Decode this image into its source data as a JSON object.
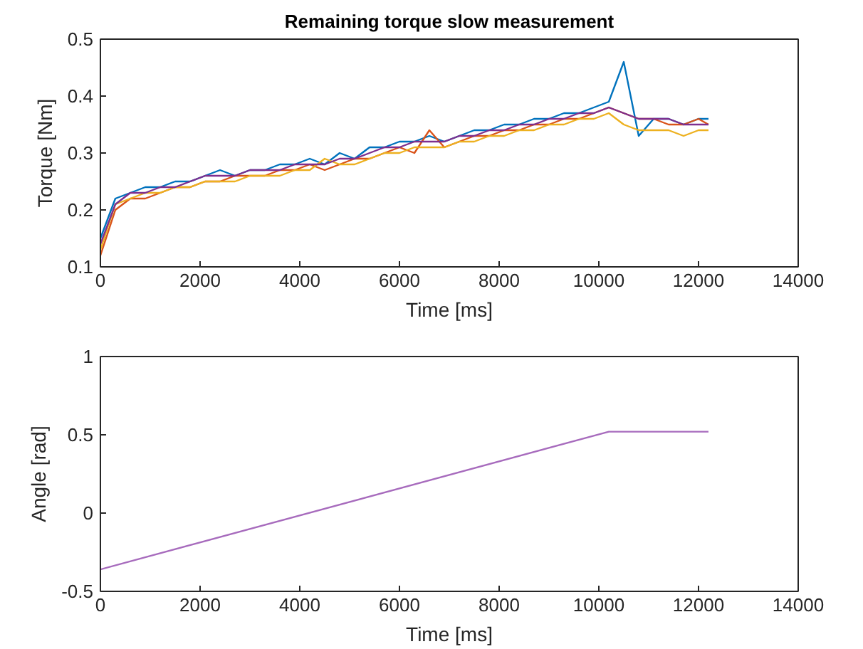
{
  "chart_data": [
    {
      "type": "line",
      "title": "Remaining torque slow measurement",
      "xlabel": "Time [ms]",
      "ylabel": "Torque [Nm]",
      "xlim": [
        0,
        14000
      ],
      "ylim": [
        0.1,
        0.5
      ],
      "xticks": [
        0,
        2000,
        4000,
        6000,
        8000,
        10000,
        12000,
        14000
      ],
      "yticks": [
        0.1,
        0.2,
        0.3,
        0.4,
        0.5
      ],
      "grid": false,
      "line_style": "solid",
      "x": [
        0,
        300,
        600,
        900,
        1200,
        1500,
        1800,
        2100,
        2400,
        2700,
        3000,
        3300,
        3600,
        3900,
        4200,
        4500,
        4800,
        5100,
        5400,
        5700,
        6000,
        6300,
        6600,
        6900,
        7200,
        7500,
        7800,
        8100,
        8400,
        8700,
        9000,
        9300,
        9600,
        9900,
        10200,
        10500,
        10800,
        11100,
        11400,
        11700,
        12000,
        12200
      ],
      "series": [
        {
          "color": "#0072bd",
          "values": [
            0.15,
            0.22,
            0.23,
            0.24,
            0.24,
            0.25,
            0.25,
            0.26,
            0.27,
            0.26,
            0.27,
            0.27,
            0.28,
            0.28,
            0.29,
            0.28,
            0.3,
            0.29,
            0.31,
            0.31,
            0.32,
            0.32,
            0.33,
            0.32,
            0.33,
            0.34,
            0.34,
            0.35,
            0.35,
            0.36,
            0.36,
            0.37,
            0.37,
            0.38,
            0.39,
            0.46,
            0.33,
            0.36,
            0.36,
            0.35,
            0.36,
            0.36
          ]
        },
        {
          "color": "#d95319",
          "values": [
            0.12,
            0.2,
            0.22,
            0.22,
            0.23,
            0.24,
            0.24,
            0.25,
            0.25,
            0.26,
            0.26,
            0.26,
            0.27,
            0.27,
            0.28,
            0.27,
            0.28,
            0.29,
            0.29,
            0.3,
            0.31,
            0.3,
            0.34,
            0.31,
            0.32,
            0.33,
            0.33,
            0.34,
            0.34,
            0.35,
            0.35,
            0.36,
            0.36,
            0.37,
            0.38,
            0.37,
            0.36,
            0.36,
            0.35,
            0.35,
            0.36,
            0.35
          ]
        },
        {
          "color": "#edb120",
          "values": [
            0.13,
            0.21,
            0.22,
            0.23,
            0.23,
            0.24,
            0.24,
            0.25,
            0.25,
            0.25,
            0.26,
            0.26,
            0.26,
            0.27,
            0.27,
            0.29,
            0.28,
            0.28,
            0.29,
            0.3,
            0.3,
            0.31,
            0.31,
            0.31,
            0.32,
            0.32,
            0.33,
            0.33,
            0.34,
            0.34,
            0.35,
            0.35,
            0.36,
            0.36,
            0.37,
            0.35,
            0.34,
            0.34,
            0.34,
            0.33,
            0.34,
            0.34
          ]
        },
        {
          "color": "#7e2f8e",
          "values": [
            0.14,
            0.21,
            0.23,
            0.23,
            0.24,
            0.24,
            0.25,
            0.26,
            0.26,
            0.26,
            0.27,
            0.27,
            0.27,
            0.28,
            0.28,
            0.28,
            0.29,
            0.29,
            0.3,
            0.31,
            0.31,
            0.32,
            0.32,
            0.32,
            0.33,
            0.33,
            0.34,
            0.34,
            0.35,
            0.35,
            0.36,
            0.36,
            0.37,
            0.37,
            0.38,
            0.37,
            0.36,
            0.36,
            0.36,
            0.35,
            0.35,
            0.35
          ]
        }
      ]
    },
    {
      "type": "line",
      "xlabel": "Time [ms]",
      "ylabel": "Angle [rad]",
      "xlim": [
        0,
        14000
      ],
      "ylim": [
        -0.5,
        1
      ],
      "xticks": [
        0,
        2000,
        4000,
        6000,
        8000,
        10000,
        12000,
        14000
      ],
      "yticks": [
        -0.5,
        0,
        0.5,
        1
      ],
      "grid": false,
      "line_style": "solid",
      "x": [
        0,
        10200,
        12200
      ],
      "series": [
        {
          "color": "#a76bbd",
          "values": [
            -0.36,
            0.52,
            0.52
          ]
        }
      ]
    }
  ]
}
